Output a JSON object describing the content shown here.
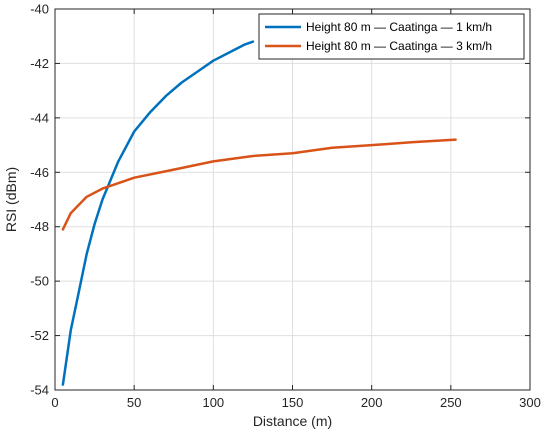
{
  "chart_data": {
    "type": "line",
    "title": "",
    "xlabel": "Distance (m)",
    "ylabel": "RSI (dBm)",
    "xlim": [
      0,
      300
    ],
    "ylim": [
      -54,
      -40
    ],
    "xticks": [
      0,
      50,
      100,
      150,
      200,
      250,
      300
    ],
    "yticks": [
      -54,
      -52,
      -50,
      -48,
      -46,
      -44,
      -42,
      -40
    ],
    "grid": true,
    "legend_location": "top-right",
    "series": [
      {
        "name": "Height 80 m — Caatinga — 1 km/h",
        "color": "#0072BD",
        "x": [
          5,
          10,
          15,
          20,
          25,
          30,
          40,
          50,
          60,
          70,
          80,
          90,
          100,
          110,
          120,
          125
        ],
        "y": [
          -53.8,
          -51.8,
          -50.4,
          -49.0,
          -47.9,
          -47.0,
          -45.6,
          -44.5,
          -43.8,
          -43.2,
          -42.7,
          -42.3,
          -41.9,
          -41.6,
          -41.3,
          -41.2
        ]
      },
      {
        "name": "Height 80 m — Caatinga — 3 km/h",
        "color": "#D95319",
        "x": [
          5,
          10,
          15,
          20,
          30,
          40,
          50,
          75,
          100,
          125,
          150,
          175,
          200,
          225,
          253
        ],
        "y": [
          -48.1,
          -47.5,
          -47.2,
          -46.9,
          -46.6,
          -46.4,
          -46.2,
          -45.9,
          -45.6,
          -45.4,
          -45.3,
          -45.1,
          -45.0,
          -44.9,
          -44.8
        ]
      }
    ]
  }
}
